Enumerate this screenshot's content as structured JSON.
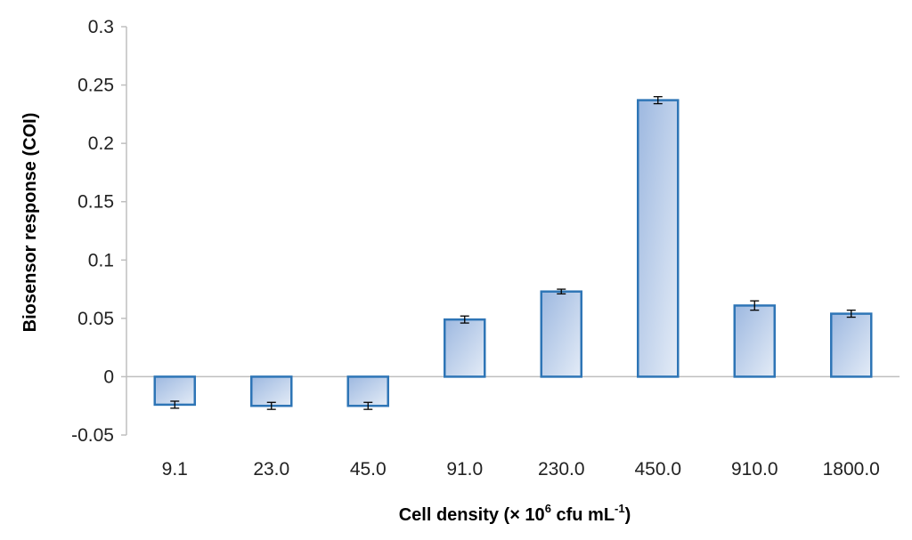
{
  "chart_data": {
    "type": "bar",
    "title": "",
    "xlabel": "Cell density (× 10⁶ cfu mL⁻¹)",
    "xlabel_parts": {
      "base": "Cell density (× 10",
      "sup1": "6",
      "mid": " cfu mL",
      "sup2": "-1",
      "end": ")"
    },
    "ylabel": "Biosensor response (COI)",
    "categories": [
      "9.1",
      "23.0",
      "45.0",
      "91.0",
      "230.0",
      "450.0",
      "910.0",
      "1800.0"
    ],
    "values": [
      -0.024,
      -0.025,
      -0.025,
      0.049,
      0.073,
      0.237,
      0.061,
      0.054
    ],
    "errors": [
      0.003,
      0.003,
      0.003,
      0.003,
      0.002,
      0.003,
      0.004,
      0.003
    ],
    "ylim": [
      -0.05,
      0.3
    ],
    "yticks": [
      0.3,
      0.25,
      0.2,
      0.15,
      0.1,
      0.05,
      0,
      -0.05
    ],
    "ytick_labels": [
      "0.3",
      "0.25",
      "0.2",
      "0.15",
      "0.1",
      "0.05",
      "0",
      "-0.05"
    ],
    "grid": false,
    "legend": "none",
    "colors": {
      "bar_stroke": "#2e75b6",
      "bar_fill_dark": "#9db8e0",
      "bar_fill_light": "#e4ecf7",
      "axis": "#bfbfbf",
      "error_bar": "#000000"
    }
  }
}
